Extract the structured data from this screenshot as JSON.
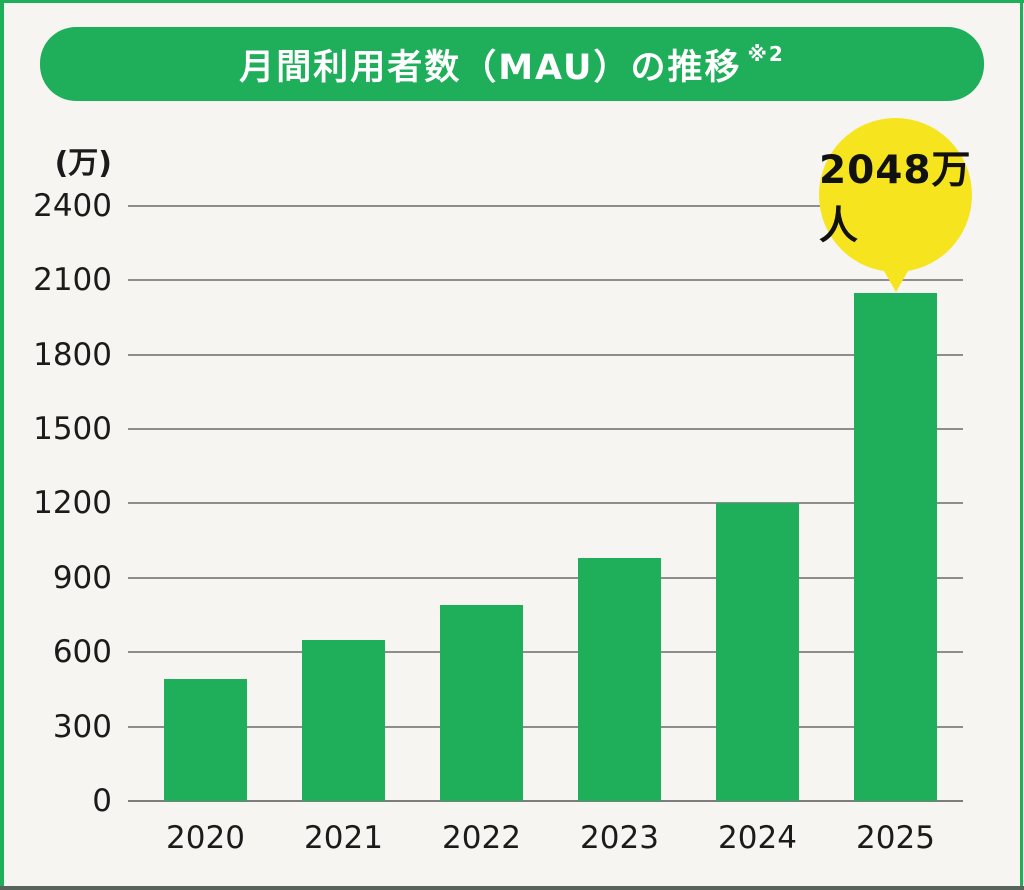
{
  "title": {
    "text": "月間利用者数（MAU）の推移",
    "note": "※2"
  },
  "colors": {
    "green": "#1fae59",
    "balloon_yellow": "#f6e41f",
    "grid_gray": "#8d8d8d",
    "text_dark": "#1b1b1b",
    "background": "#f6f5f1",
    "title_text": "#ffffff",
    "annotation_text": "#111111"
  },
  "chart_data": {
    "type": "bar",
    "title": "月間利用者数（MAU）の推移 ※2",
    "unit_label": "(万)",
    "categories": [
      "2020",
      "2021",
      "2022",
      "2023",
      "2024",
      "2025"
    ],
    "values": [
      490,
      650,
      790,
      980,
      1200,
      2048
    ],
    "xlabel": "",
    "ylabel": "(万)",
    "ylim": [
      0,
      2400
    ],
    "yticks": [
      0,
      300,
      600,
      900,
      1200,
      1500,
      1800,
      2100,
      2400
    ],
    "grid": true,
    "legend": false,
    "bar_color": "#1fae59",
    "annotation": {
      "text": "2048万人",
      "category": "2025",
      "shape": "yellow-balloon"
    }
  }
}
